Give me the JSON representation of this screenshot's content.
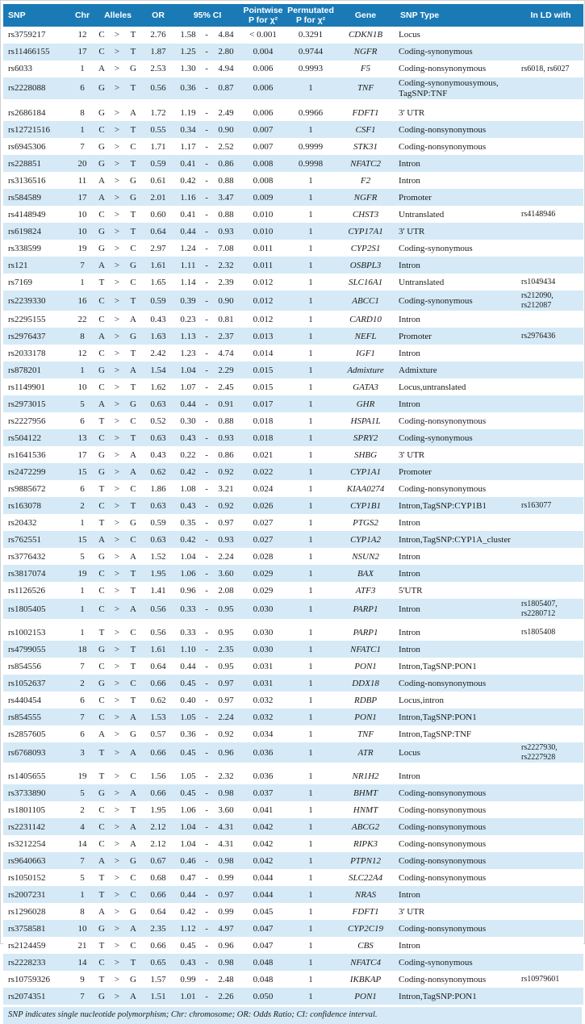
{
  "colors": {
    "header_bg": "#1a7ab5",
    "row_alt_bg": "#d5eaf6",
    "header_text": "#ffffff",
    "body_text": "#1b1b1b"
  },
  "footnote": "SNP indicates single nucleotide polymorphism; Chr: chromosome; OR: Odds Ratio; CI: confidence interval.",
  "table": {
    "allele_separator": ">",
    "ci_separator": "-",
    "columns": [
      {
        "key": "snp",
        "label": "SNP"
      },
      {
        "key": "chr",
        "label": "Chr"
      },
      {
        "key": "alleles",
        "label": "Alleles"
      },
      {
        "key": "or",
        "label": "OR"
      },
      {
        "key": "ci",
        "label": "95% CI"
      },
      {
        "key": "pointwise-p",
        "label": "Pointwise\nP for χ²"
      },
      {
        "key": "permutated-p",
        "label": "Permutated\nP for χ²"
      },
      {
        "key": "gene",
        "label": "Gene"
      },
      {
        "key": "snp-type",
        "label": "SNP Type"
      },
      {
        "key": "in-ld-with",
        "label": "In LD with"
      }
    ],
    "row_fields": [
      "snp",
      "chr",
      "allele1",
      "allele2",
      "or",
      "ci_lower",
      "ci_upper",
      "pointwise_p",
      "permutated_p",
      "gene",
      "snp_type",
      "in_ld_with"
    ],
    "gaps_after": [
      3,
      33,
      41
    ],
    "rows": [
      [
        "rs3759217",
        "12",
        "C",
        "T",
        "2.76",
        "1.58",
        "4.84",
        "< 0.001",
        "0.3291",
        "CDKN1B",
        "Locus",
        ""
      ],
      [
        "rs11466155",
        "17",
        "C",
        "T",
        "1.87",
        "1.25",
        "2.80",
        "0.004",
        "0.9744",
        "NGFR",
        "Coding-synonymous",
        ""
      ],
      [
        "rs6033",
        "1",
        "A",
        "G",
        "2.53",
        "1.30",
        "4.94",
        "0.006",
        "0.9993",
        "F5",
        "Coding-nonsynonymous",
        "rs6018, rs6027"
      ],
      [
        "rs2228088",
        "6",
        "G",
        "T",
        "0.56",
        "0.36",
        "0.87",
        "0.006",
        "1",
        "TNF",
        "Coding-synonymousymous,\nTagSNP:TNF",
        ""
      ],
      [
        "rs2686184",
        "8",
        "G",
        "A",
        "1.72",
        "1.19",
        "2.49",
        "0.006",
        "0.9966",
        "FDFT1",
        "3' UTR",
        ""
      ],
      [
        "rs12721516",
        "1",
        "C",
        "T",
        "0.55",
        "0.34",
        "0.90",
        "0.007",
        "1",
        "CSF1",
        "Coding-nonsynonymous",
        ""
      ],
      [
        "rs6945306",
        "7",
        "G",
        "C",
        "1.71",
        "1.17",
        "2.52",
        "0.007",
        "0.9999",
        "STK31",
        "Coding-nonsynonymous",
        ""
      ],
      [
        "rs228851",
        "20",
        "G",
        "T",
        "0.59",
        "0.41",
        "0.86",
        "0.008",
        "0.9998",
        "NFATC2",
        "Intron",
        ""
      ],
      [
        "rs3136516",
        "11",
        "A",
        "G",
        "0.61",
        "0.42",
        "0.88",
        "0.008",
        "1",
        "F2",
        "Intron",
        ""
      ],
      [
        "rs584589",
        "17",
        "A",
        "G",
        "2.01",
        "1.16",
        "3.47",
        "0.009",
        "1",
        "NGFR",
        "Promoter",
        ""
      ],
      [
        "rs4148949",
        "10",
        "C",
        "T",
        "0.60",
        "0.41",
        "0.88",
        "0.010",
        "1",
        "CHST3",
        "Untranslated",
        "rs4148946"
      ],
      [
        "rs619824",
        "10",
        "G",
        "T",
        "0.64",
        "0.44",
        "0.93",
        "0.010",
        "1",
        "CYP17A1",
        "3' UTR",
        ""
      ],
      [
        "rs338599",
        "19",
        "G",
        "C",
        "2.97",
        "1.24",
        "7.08",
        "0.011",
        "1",
        "CYP2S1",
        "Coding-synonymous",
        ""
      ],
      [
        "rs121",
        "7",
        "A",
        "G",
        "1.61",
        "1.11",
        "2.32",
        "0.011",
        "1",
        "OSBPL3",
        "Intron",
        ""
      ],
      [
        "rs7169",
        "1",
        "T",
        "C",
        "1.65",
        "1.14",
        "2.39",
        "0.012",
        "1",
        "SLC16A1",
        "Untranslated",
        "rs1049434"
      ],
      [
        "rs2239330",
        "16",
        "C",
        "T",
        "0.59",
        "0.39",
        "0.90",
        "0.012",
        "1",
        "ABCC1",
        "Coding-synonymous",
        "rs212090, rs212087"
      ],
      [
        "rs2295155",
        "22",
        "C",
        "A",
        "0.43",
        "0.23",
        "0.81",
        "0.012",
        "1",
        "CARD10",
        "Intron",
        ""
      ],
      [
        "rs2976437",
        "8",
        "A",
        "G",
        "1.63",
        "1.13",
        "2.37",
        "0.013",
        "1",
        "NEFL",
        "Promoter",
        "rs2976436"
      ],
      [
        "rs2033178",
        "12",
        "C",
        "T",
        "2.42",
        "1.23",
        "4.74",
        "0.014",
        "1",
        "IGF1",
        "Intron",
        ""
      ],
      [
        "rs878201",
        "1",
        "G",
        "A",
        "1.54",
        "1.04",
        "2.29",
        "0.015",
        "1",
        "Admixture",
        "Admixture",
        ""
      ],
      [
        "rs1149901",
        "10",
        "C",
        "T",
        "1.62",
        "1.07",
        "2.45",
        "0.015",
        "1",
        "GATA3",
        "Locus,untranslated",
        ""
      ],
      [
        "rs2973015",
        "5",
        "A",
        "G",
        "0.63",
        "0.44",
        "0.91",
        "0.017",
        "1",
        "GHR",
        "Intron",
        ""
      ],
      [
        "rs2227956",
        "6",
        "T",
        "C",
        "0.52",
        "0.30",
        "0.88",
        "0.018",
        "1",
        "HSPA1L",
        "Coding-nonsynonymous",
        ""
      ],
      [
        "rs504122",
        "13",
        "C",
        "T",
        "0.63",
        "0.43",
        "0.93",
        "0.018",
        "1",
        "SPRY2",
        "Coding-synonymous",
        ""
      ],
      [
        "rs1641536",
        "17",
        "G",
        "A",
        "0.43",
        "0.22",
        "0.86",
        "0.021",
        "1",
        "SHBG",
        "3' UTR",
        ""
      ],
      [
        "rs2472299",
        "15",
        "G",
        "A",
        "0.62",
        "0.42",
        "0.92",
        "0.022",
        "1",
        "CYP1A1",
        "Promoter",
        ""
      ],
      [
        "rs9885672",
        "6",
        "T",
        "C",
        "1.86",
        "1.08",
        "3.21",
        "0.024",
        "1",
        "KIAA0274",
        "Coding-nonsynonymous",
        ""
      ],
      [
        "rs163078",
        "2",
        "C",
        "T",
        "0.63",
        "0.43",
        "0.92",
        "0.026",
        "1",
        "CYP1B1",
        "Intron,TagSNP:CYP1B1",
        "rs163077"
      ],
      [
        "rs20432",
        "1",
        "T",
        "G",
        "0.59",
        "0.35",
        "0.97",
        "0.027",
        "1",
        "PTGS2",
        "Intron",
        ""
      ],
      [
        "rs762551",
        "15",
        "A",
        "C",
        "0.63",
        "0.42",
        "0.93",
        "0.027",
        "1",
        "CYP1A2",
        "Intron,TagSNP:CYP1A_cluster",
        ""
      ],
      [
        "rs3776432",
        "5",
        "G",
        "A",
        "1.52",
        "1.04",
        "2.24",
        "0.028",
        "1",
        "NSUN2",
        "Intron",
        ""
      ],
      [
        "rs3817074",
        "19",
        "C",
        "T",
        "1.95",
        "1.06",
        "3.60",
        "0.029",
        "1",
        "BAX",
        "Intron",
        ""
      ],
      [
        "rs1126526",
        "1",
        "C",
        "T",
        "1.41",
        "0.96",
        "2.08",
        "0.029",
        "1",
        "ATF3",
        "5'UTR",
        ""
      ],
      [
        "rs1805405",
        "1",
        "C",
        "A",
        "0.56",
        "0.33",
        "0.95",
        "0.030",
        "1",
        "PARP1",
        "Intron",
        "rs1805407,\nrs2280712"
      ],
      [
        "rs1002153",
        "1",
        "T",
        "C",
        "0.56",
        "0.33",
        "0.95",
        "0.030",
        "1",
        "PARP1",
        "Intron",
        "rs1805408"
      ],
      [
        "rs4799055",
        "18",
        "G",
        "T",
        "1.61",
        "1.10",
        "2.35",
        "0.030",
        "1",
        "NFATC1",
        "Intron",
        ""
      ],
      [
        "rs854556",
        "7",
        "C",
        "T",
        "0.64",
        "0.44",
        "0.95",
        "0.031",
        "1",
        "PON1",
        "Intron,TagSNP:PON1",
        ""
      ],
      [
        "rs1052637",
        "2",
        "G",
        "C",
        "0.66",
        "0.45",
        "0.97",
        "0.031",
        "1",
        "DDX18",
        "Coding-nonsynonymous",
        ""
      ],
      [
        "rs440454",
        "6",
        "C",
        "T",
        "0.62",
        "0.40",
        "0.97",
        "0.032",
        "1",
        "RDBP",
        "Locus,intron",
        ""
      ],
      [
        "rs854555",
        "7",
        "C",
        "A",
        "1.53",
        "1.05",
        "2.24",
        "0.032",
        "1",
        "PON1",
        "Intron,TagSNP:PON1",
        ""
      ],
      [
        "rs2857605",
        "6",
        "A",
        "G",
        "0.57",
        "0.36",
        "0.92",
        "0.034",
        "1",
        "TNF",
        "Intron,TagSNP:TNF",
        ""
      ],
      [
        "rs6768093",
        "3",
        "T",
        "A",
        "0.66",
        "0.45",
        "0.96",
        "0.036",
        "1",
        "ATR",
        "Locus",
        "rs2227930,\nrs2227928"
      ],
      [
        "rs1405655",
        "19",
        "T",
        "C",
        "1.56",
        "1.05",
        "2.32",
        "0.036",
        "1",
        "NR1H2",
        "Intron",
        ""
      ],
      [
        "rs3733890",
        "5",
        "G",
        "A",
        "0.66",
        "0.45",
        "0.98",
        "0.037",
        "1",
        "BHMT",
        "Coding-nonsynonymous",
        ""
      ],
      [
        "rs1801105",
        "2",
        "C",
        "T",
        "1.95",
        "1.06",
        "3.60",
        "0.041",
        "1",
        "HNMT",
        "Coding-nonsynonymous",
        ""
      ],
      [
        "rs2231142",
        "4",
        "C",
        "A",
        "2.12",
        "1.04",
        "4.31",
        "0.042",
        "1",
        "ABCG2",
        "Coding-nonsynonymous",
        ""
      ],
      [
        "rs3212254",
        "14",
        "C",
        "A",
        "2.12",
        "1.04",
        "4.31",
        "0.042",
        "1",
        "RIPK3",
        "Coding-nonsynonymous",
        ""
      ],
      [
        "rs9640663",
        "7",
        "A",
        "G",
        "0.67",
        "0.46",
        "0.98",
        "0.042",
        "1",
        "PTPN12",
        "Coding-nonsynonymous",
        ""
      ],
      [
        "rs1050152",
        "5",
        "T",
        "C",
        "0.68",
        "0.47",
        "0.99",
        "0.044",
        "1",
        "SLC22A4",
        "Coding-nonsynonymous",
        ""
      ],
      [
        "rs2007231",
        "1",
        "T",
        "C",
        "0.66",
        "0.44",
        "0.97",
        "0.044",
        "1",
        "NRAS",
        "Intron",
        ""
      ],
      [
        "rs1296028",
        "8",
        "A",
        "G",
        "0.64",
        "0.42",
        "0.99",
        "0.045",
        "1",
        "FDFT1",
        "3' UTR",
        ""
      ],
      [
        "rs3758581",
        "10",
        "G",
        "A",
        "2.35",
        "1.12",
        "4.97",
        "0.047",
        "1",
        "CYP2C19",
        "Coding-nonsynonymous",
        ""
      ],
      [
        "rs2124459",
        "21",
        "T",
        "C",
        "0.66",
        "0.45",
        "0.96",
        "0.047",
        "1",
        "CBS",
        "Intron",
        ""
      ],
      [
        "rs2228233",
        "14",
        "C",
        "T",
        "0.65",
        "0.43",
        "0.98",
        "0.048",
        "1",
        "NFATC4",
        "Coding-synonymous",
        ""
      ],
      [
        "rs10759326",
        "9",
        "T",
        "G",
        "1.57",
        "0.99",
        "2.48",
        "0.048",
        "1",
        "IKBKAP",
        "Coding-nonsynonymous",
        "rs10979601"
      ],
      [
        "rs2074351",
        "7",
        "G",
        "A",
        "1.51",
        "1.01",
        "2.26",
        "0.050",
        "1",
        "PON1",
        "Intron,TagSNP:PON1",
        ""
      ]
    ]
  }
}
